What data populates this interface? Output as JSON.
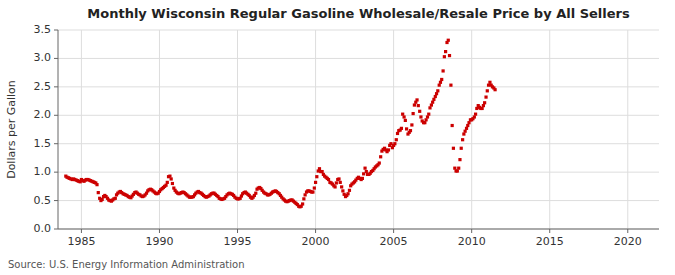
{
  "chart_data": {
    "type": "scatter",
    "title": "Monthly Wisconsin Regular Gasoline Wholesale/Resale Price by All Sellers",
    "y_label": "Dollars per Gallon",
    "annotation": "Source: U.S. Energy Information Administration",
    "color": "#cc0000",
    "marker": "square",
    "grid": true,
    "xlim": [
      1983.5,
      2022
    ],
    "ylim": [
      0.0,
      3.5
    ],
    "xticks": [
      1985,
      1990,
      1995,
      2000,
      2005,
      2010,
      2015,
      2020
    ],
    "yticks": [
      {
        "value": 0.0,
        "label": "0.0"
      },
      0.5,
      {
        "value": 1.0,
        "label": "1.0"
      },
      1.5,
      {
        "value": 2.0,
        "label": "2.0"
      },
      2.5,
      {
        "value": 3.0,
        "label": "3.0"
      },
      {
        "value": 3.5,
        "label": "3.5"
      }
    ],
    "x": [
      1984.0,
      1984.08,
      1984.17,
      1984.25,
      1984.33,
      1984.42,
      1984.5,
      1984.58,
      1984.67,
      1984.75,
      1984.83,
      1984.92,
      1985.0,
      1985.08,
      1985.17,
      1985.25,
      1985.33,
      1985.42,
      1985.5,
      1985.58,
      1985.67,
      1985.75,
      1985.83,
      1985.92,
      1986.0,
      1986.08,
      1986.17,
      1986.25,
      1986.33,
      1986.42,
      1986.5,
      1986.58,
      1986.67,
      1986.75,
      1986.83,
      1986.92,
      1987.0,
      1987.08,
      1987.17,
      1987.25,
      1987.33,
      1987.42,
      1987.5,
      1987.58,
      1987.67,
      1987.75,
      1987.83,
      1987.92,
      1988.0,
      1988.08,
      1988.17,
      1988.25,
      1988.33,
      1988.42,
      1988.5,
      1988.58,
      1988.67,
      1988.75,
      1988.83,
      1988.92,
      1989.0,
      1989.08,
      1989.17,
      1989.25,
      1989.33,
      1989.42,
      1989.5,
      1989.58,
      1989.67,
      1989.75,
      1989.83,
      1989.92,
      1990.0,
      1990.08,
      1990.17,
      1990.25,
      1990.33,
      1990.42,
      1990.5,
      1990.58,
      1990.67,
      1990.75,
      1990.83,
      1990.92,
      1991.0,
      1991.08,
      1991.17,
      1991.25,
      1991.33,
      1991.42,
      1991.5,
      1991.58,
      1991.67,
      1991.75,
      1991.83,
      1991.92,
      1992.0,
      1992.08,
      1992.17,
      1992.25,
      1992.33,
      1992.42,
      1992.5,
      1992.58,
      1992.67,
      1992.75,
      1992.83,
      1992.92,
      1993.0,
      1993.08,
      1993.17,
      1993.25,
      1993.33,
      1993.42,
      1993.5,
      1993.58,
      1993.67,
      1993.75,
      1993.83,
      1993.92,
      1994.0,
      1994.08,
      1994.17,
      1994.25,
      1994.33,
      1994.42,
      1994.5,
      1994.58,
      1994.67,
      1994.75,
      1994.83,
      1994.92,
      1995.0,
      1995.08,
      1995.17,
      1995.25,
      1995.33,
      1995.42,
      1995.5,
      1995.58,
      1995.67,
      1995.75,
      1995.83,
      1995.92,
      1996.0,
      1996.08,
      1996.17,
      1996.25,
      1996.33,
      1996.42,
      1996.5,
      1996.58,
      1996.67,
      1996.75,
      1996.83,
      1996.92,
      1997.0,
      1997.08,
      1997.17,
      1997.25,
      1997.33,
      1997.42,
      1997.5,
      1997.58,
      1997.67,
      1997.75,
      1997.83,
      1997.92,
      1998.0,
      1998.08,
      1998.17,
      1998.25,
      1998.33,
      1998.42,
      1998.5,
      1998.58,
      1998.67,
      1998.75,
      1998.83,
      1998.92,
      1999.0,
      1999.08,
      1999.17,
      1999.25,
      1999.33,
      1999.42,
      1999.5,
      1999.58,
      1999.67,
      1999.75,
      1999.83,
      1999.92,
      2000.0,
      2000.08,
      2000.17,
      2000.25,
      2000.33,
      2000.42,
      2000.5,
      2000.58,
      2000.67,
      2000.75,
      2000.83,
      2000.92,
      2001.0,
      2001.08,
      2001.17,
      2001.25,
      2001.33,
      2001.42,
      2001.5,
      2001.58,
      2001.67,
      2001.75,
      2001.83,
      2001.92,
      2002.0,
      2002.08,
      2002.17,
      2002.25,
      2002.33,
      2002.42,
      2002.5,
      2002.58,
      2002.67,
      2002.75,
      2002.83,
      2002.92,
      2003.0,
      2003.08,
      2003.17,
      2003.25,
      2003.33,
      2003.42,
      2003.5,
      2003.58,
      2003.67,
      2003.75,
      2003.83,
      2003.92,
      2004.0,
      2004.08,
      2004.17,
      2004.25,
      2004.33,
      2004.42,
      2004.5,
      2004.58,
      2004.67,
      2004.75,
      2004.83,
      2004.92,
      2005.0,
      2005.08,
      2005.17,
      2005.25,
      2005.33,
      2005.42,
      2005.5,
      2005.58,
      2005.67,
      2005.75,
      2005.83,
      2005.92,
      2006.0,
      2006.08,
      2006.17,
      2006.25,
      2006.33,
      2006.42,
      2006.5,
      2006.58,
      2006.67,
      2006.75,
      2006.83,
      2006.92,
      2007.0,
      2007.08,
      2007.17,
      2007.25,
      2007.33,
      2007.42,
      2007.5,
      2007.58,
      2007.67,
      2007.75,
      2007.83,
      2007.92,
      2008.0,
      2008.08,
      2008.17,
      2008.25,
      2008.33,
      2008.42,
      2008.5,
      2008.58,
      2008.67,
      2008.75,
      2008.83,
      2008.92,
      2009.0,
      2009.08,
      2009.17,
      2009.25,
      2009.33,
      2009.42,
      2009.5,
      2009.58,
      2009.67,
      2009.75,
      2009.83,
      2009.92,
      2010.0,
      2010.08,
      2010.17,
      2010.25,
      2010.33,
      2010.42,
      2010.5,
      2010.58,
      2010.67,
      2010.75,
      2010.83,
      2010.92,
      2011.0,
      2011.08,
      2011.17,
      2011.25,
      2011.33,
      2011.42,
      2011.5
    ],
    "values": [
      0.93,
      0.91,
      0.9,
      0.89,
      0.88,
      0.87,
      0.88,
      0.87,
      0.86,
      0.85,
      0.84,
      0.83,
      0.87,
      0.85,
      0.84,
      0.86,
      0.87,
      0.87,
      0.86,
      0.85,
      0.84,
      0.83,
      0.82,
      0.81,
      0.78,
      0.64,
      0.54,
      0.5,
      0.52,
      0.57,
      0.59,
      0.57,
      0.54,
      0.51,
      0.5,
      0.49,
      0.51,
      0.53,
      0.54,
      0.6,
      0.63,
      0.65,
      0.66,
      0.64,
      0.62,
      0.61,
      0.6,
      0.59,
      0.57,
      0.56,
      0.55,
      0.58,
      0.61,
      0.64,
      0.65,
      0.63,
      0.61,
      0.6,
      0.58,
      0.57,
      0.58,
      0.6,
      0.63,
      0.67,
      0.69,
      0.7,
      0.69,
      0.67,
      0.65,
      0.63,
      0.62,
      0.63,
      0.66,
      0.69,
      0.71,
      0.73,
      0.75,
      0.77,
      0.82,
      0.92,
      0.93,
      0.88,
      0.8,
      0.72,
      0.68,
      0.65,
      0.63,
      0.62,
      0.63,
      0.64,
      0.65,
      0.64,
      0.62,
      0.6,
      0.58,
      0.56,
      0.56,
      0.56,
      0.57,
      0.6,
      0.63,
      0.65,
      0.66,
      0.64,
      0.63,
      0.61,
      0.59,
      0.57,
      0.56,
      0.57,
      0.58,
      0.6,
      0.62,
      0.63,
      0.63,
      0.61,
      0.59,
      0.57,
      0.54,
      0.53,
      0.52,
      0.53,
      0.54,
      0.57,
      0.6,
      0.62,
      0.63,
      0.62,
      0.61,
      0.59,
      0.56,
      0.54,
      0.53,
      0.53,
      0.54,
      0.58,
      0.62,
      0.64,
      0.65,
      0.63,
      0.61,
      0.59,
      0.56,
      0.54,
      0.56,
      0.59,
      0.63,
      0.7,
      0.72,
      0.73,
      0.71,
      0.68,
      0.65,
      0.63,
      0.62,
      0.6,
      0.6,
      0.61,
      0.63,
      0.65,
      0.66,
      0.67,
      0.66,
      0.64,
      0.62,
      0.59,
      0.56,
      0.53,
      0.51,
      0.49,
      0.48,
      0.49,
      0.5,
      0.51,
      0.51,
      0.49,
      0.47,
      0.45,
      0.43,
      0.4,
      0.39,
      0.4,
      0.44,
      0.53,
      0.6,
      0.65,
      0.67,
      0.67,
      0.66,
      0.65,
      0.65,
      0.72,
      0.82,
      0.92,
      1.02,
      1.06,
      1.01,
      1.01,
      0.96,
      0.93,
      0.91,
      0.89,
      0.87,
      0.82,
      0.81,
      0.79,
      0.76,
      0.74,
      0.81,
      0.87,
      0.88,
      0.82,
      0.74,
      0.67,
      0.61,
      0.57,
      0.59,
      0.62,
      0.68,
      0.76,
      0.79,
      0.81,
      0.83,
      0.86,
      0.89,
      0.91,
      0.89,
      0.87,
      0.89,
      0.97,
      1.07,
      1.01,
      0.96,
      0.96,
      0.98,
      1.01,
      1.03,
      1.06,
      1.09,
      1.11,
      1.13,
      1.16,
      1.27,
      1.37,
      1.4,
      1.42,
      1.39,
      1.36,
      1.39,
      1.47,
      1.5,
      1.43,
      1.47,
      1.5,
      1.57,
      1.68,
      1.73,
      1.74,
      1.77,
      2.02,
      1.97,
      1.91,
      1.76,
      1.67,
      1.7,
      1.73,
      1.83,
      2.03,
      2.18,
      2.23,
      2.27,
      2.17,
      2.07,
      1.97,
      1.9,
      1.87,
      1.87,
      1.92,
      1.97,
      2.02,
      2.13,
      2.18,
      2.23,
      2.28,
      2.33,
      2.38,
      2.43,
      2.53,
      2.58,
      2.63,
      2.78,
      3.03,
      3.12,
      3.28,
      3.32,
      3.05,
      2.53,
      1.82,
      1.42,
      1.07,
      1.02,
      1.02,
      1.07,
      1.22,
      1.42,
      1.57,
      1.67,
      1.72,
      1.77,
      1.82,
      1.87,
      1.92,
      1.92,
      1.94,
      1.97,
      2.02,
      2.12,
      2.17,
      2.14,
      2.12,
      2.12,
      2.17,
      2.22,
      2.32,
      2.43,
      2.53,
      2.58,
      2.53,
      2.5,
      2.48,
      2.45
    ]
  }
}
